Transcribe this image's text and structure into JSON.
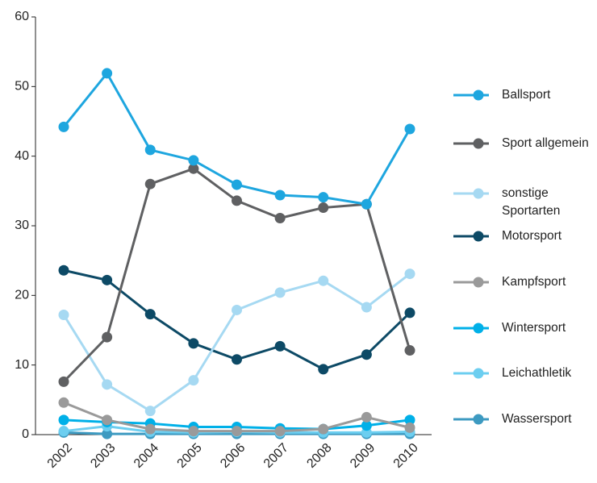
{
  "chart_data": {
    "type": "line",
    "categories": [
      "2002",
      "2003",
      "2004",
      "2005",
      "2006",
      "2007",
      "2008",
      "2009",
      "2010"
    ],
    "series": [
      {
        "name": "Ballsport",
        "color": "#1ea6df",
        "values": [
          44.2,
          51.9,
          40.9,
          39.4,
          35.9,
          34.4,
          34.1,
          33.1,
          43.9
        ]
      },
      {
        "name": "Sport allgemein",
        "color": "#5f6062",
        "values": [
          7.6,
          14,
          36,
          38.2,
          33.6,
          31.1,
          32.6,
          33.1,
          12.1
        ]
      },
      {
        "name": "sonstige Sportarten",
        "color": "#a6d9f2",
        "values": [
          17.2,
          7.2,
          3.4,
          7.8,
          17.9,
          20.4,
          22.1,
          18.3,
          23.1
        ]
      },
      {
        "name": "Motorsport",
        "color": "#0d4a66",
        "values": [
          23.6,
          22.2,
          17.3,
          13.1,
          10.8,
          12.7,
          9.4,
          11.5,
          17.5
        ]
      },
      {
        "name": "Kampfsport",
        "color": "#9a9a9a",
        "values": [
          4.6,
          2.1,
          0.8,
          0.5,
          0.5,
          0.5,
          0.8,
          2.5,
          1.0
        ]
      },
      {
        "name": "Wintersport",
        "color": "#00b0e8",
        "values": [
          2.1,
          1.8,
          1.6,
          1.1,
          1.1,
          0.9,
          0.8,
          1.3,
          2.1
        ]
      },
      {
        "name": "Leichathletik",
        "color": "#6ccef0",
        "values": [
          0.5,
          1.2,
          0.4,
          0.3,
          0.4,
          0.3,
          0.3,
          0.3,
          0.4
        ]
      },
      {
        "name": "Wassersport",
        "color": "#3d9ac1",
        "values": [
          0.3,
          0.1,
          0.1,
          0.1,
          0.1,
          0.1,
          0.1,
          0.1,
          0.1
        ]
      }
    ],
    "ylim": [
      0,
      60
    ],
    "yticks": [
      0,
      10,
      20,
      30,
      40,
      50,
      60
    ],
    "grid": false,
    "legend": "right"
  }
}
